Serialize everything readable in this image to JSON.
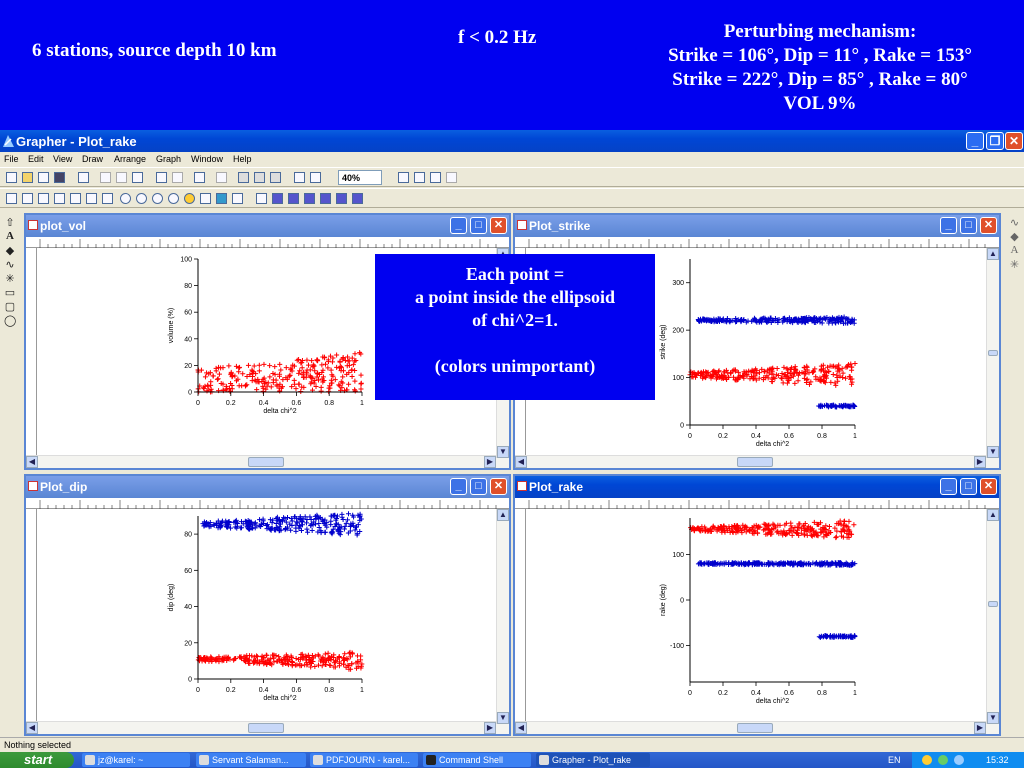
{
  "slide": {
    "left_text": "6 stations, source depth 10  km",
    "mid_text": "f < 0.2 Hz",
    "right_lines": [
      "Perturbing mechanism:",
      "Strike = 106°, Dip = 11° , Rake =  153°",
      "Strike = 222°, Dip = 85° , Rake =   80°",
      "VOL 9%"
    ]
  },
  "window": {
    "title": "Grapher - Plot_rake",
    "menu": [
      "File",
      "Edit",
      "View",
      "Draw",
      "Arrange",
      "Graph",
      "Window",
      "Help"
    ],
    "zoom": "40%"
  },
  "overlay": {
    "lines": [
      "Each point =",
      "a point inside the ellipsoid",
      "of chi^2=1.",
      "",
      "(colors unimportant)"
    ]
  },
  "status": "Nothing selected",
  "taskbar": {
    "start": "start",
    "tasks": [
      "jz@karel: ~",
      "Servant Salaman...",
      "PDFJOURN - karel...",
      "Command Shell",
      "Grapher - Plot_rake"
    ],
    "lang": "EN",
    "clock": "15:32"
  },
  "colors": {
    "series_red": "#ff0000",
    "series_blue": "#0000cc",
    "xp_blue": "#0046d5"
  },
  "chart_data": [
    {
      "type": "scatter",
      "window_title": "plot_vol",
      "xlabel": "delta chi^2",
      "ylabel": "volume (%)",
      "xlim": [
        0,
        1
      ],
      "ylim": [
        0,
        100
      ],
      "xticks": [
        0,
        0.2,
        0.4,
        0.6,
        0.8,
        1
      ],
      "yticks": [
        0,
        20,
        40,
        60,
        80,
        100
      ],
      "series": [
        {
          "color": "red",
          "bands": [
            {
              "x": [
                0,
                1
              ],
              "ylow": [
                0,
                0
              ],
              "yhigh": [
                18,
                30
              ]
            }
          ]
        }
      ]
    },
    {
      "type": "scatter",
      "window_title": "Plot_strike",
      "xlabel": "delta chi^2",
      "ylabel": "strike (deg)",
      "xlim": [
        0,
        1
      ],
      "ylim": [
        0,
        350
      ],
      "xticks": [
        0,
        0.2,
        0.4,
        0.6,
        0.8,
        1
      ],
      "yticks": [
        0,
        100,
        200,
        300
      ],
      "series": [
        {
          "color": "blue",
          "bands": [
            {
              "x": [
                0.05,
                1
              ],
              "ylow": [
                218,
                214
              ],
              "yhigh": [
                224,
                228
              ]
            },
            {
              "x": [
                0.78,
                1
              ],
              "ylow": [
                38,
                38
              ],
              "yhigh": [
                42,
                42
              ]
            }
          ]
        },
        {
          "color": "red",
          "bands": [
            {
              "x": [
                0,
                1
              ],
              "ylow": [
                100,
                80
              ],
              "yhigh": [
                112,
                130
              ]
            }
          ]
        }
      ]
    },
    {
      "type": "scatter",
      "window_title": "Plot_dip",
      "xlabel": "delta chi^2",
      "ylabel": "dip (deg)",
      "xlim": [
        0,
        1
      ],
      "ylim": [
        0,
        90
      ],
      "xticks": [
        0,
        0.2,
        0.4,
        0.6,
        0.8,
        1
      ],
      "yticks": [
        0,
        20,
        40,
        60,
        80
      ],
      "series": [
        {
          "color": "blue",
          "bands": [
            {
              "x": [
                0.03,
                1
              ],
              "ylow": [
                84,
                79
              ],
              "yhigh": [
                87,
                92
              ]
            }
          ]
        },
        {
          "color": "red",
          "bands": [
            {
              "x": [
                0,
                1
              ],
              "ylow": [
                10,
                5
              ],
              "yhigh": [
                12,
                15
              ]
            }
          ]
        }
      ]
    },
    {
      "type": "scatter",
      "window_title": "Plot_rake",
      "xlabel": "delta chi^2",
      "ylabel": "rake (deg)",
      "xlim": [
        0,
        1
      ],
      "ylim": [
        -180,
        180
      ],
      "xticks": [
        0,
        0.2,
        0.4,
        0.6,
        0.8,
        1
      ],
      "yticks": [
        -100,
        0,
        100
      ],
      "series": [
        {
          "color": "red",
          "bands": [
            {
              "x": [
                0,
                1
              ],
              "ylow": [
                152,
                135
              ],
              "yhigh": [
                160,
                175
              ]
            }
          ]
        },
        {
          "color": "blue",
          "bands": [
            {
              "x": [
                0.05,
                1
              ],
              "ylow": [
                78,
                76
              ],
              "yhigh": [
                82,
                82
              ]
            },
            {
              "x": [
                0.78,
                1
              ],
              "ylow": [
                -82,
                -82
              ],
              "yhigh": [
                -78,
                -78
              ]
            }
          ]
        }
      ]
    }
  ]
}
